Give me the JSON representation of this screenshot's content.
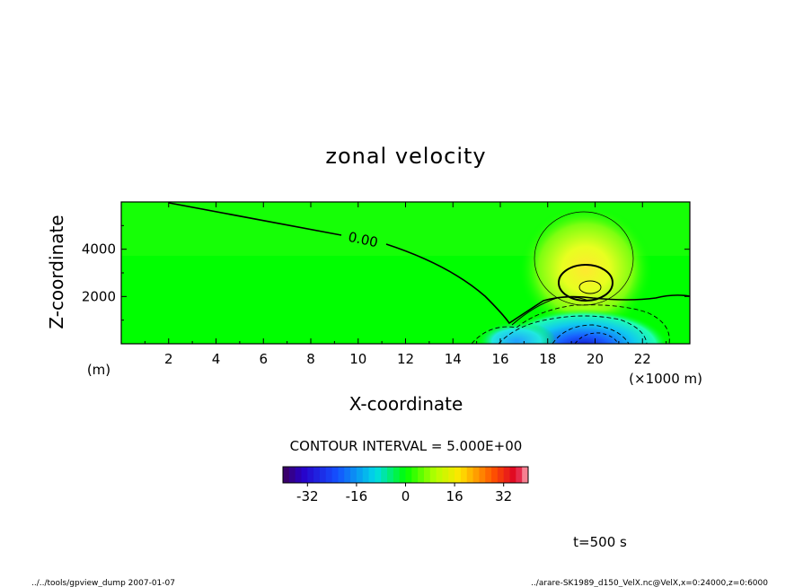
{
  "chart_data": {
    "type": "heatmap",
    "title": "zonal velocity",
    "xlabel": "X-coordinate",
    "ylabel": "Z-coordinate",
    "x_unit": "(×1000 m)",
    "y_unit": "(m)",
    "xlim": [
      0,
      24
    ],
    "ylim": [
      0,
      6000
    ],
    "x_ticks": [
      "2",
      "4",
      "6",
      "8",
      "10",
      "12",
      "14",
      "16",
      "18",
      "20",
      "22"
    ],
    "y_ticks": [
      "2000",
      "4000"
    ],
    "contour_label": "0.00",
    "contour_interval_text": "CONTOUR INTERVAL = 5.000E+00",
    "colorbar": {
      "range": [
        -40,
        40
      ],
      "ticks": [
        "-32",
        "-16",
        "0",
        "16",
        "32"
      ],
      "tick_values": [
        -32,
        -16,
        0,
        16,
        32
      ]
    },
    "features": [
      {
        "name": "positive jet",
        "x": 19.8,
        "z": 2400,
        "peak": 20
      },
      {
        "name": "negative near-surface flow",
        "x": 19.5,
        "z": 300,
        "peak": -25
      }
    ],
    "time_label": "t=500 s",
    "footer_left": "../../tools/gpview_dump  2007-01-07",
    "footer_right": "../arare-SK1989_d150_VelX.nc@VelX,x=0:24000,z=0:6000"
  }
}
